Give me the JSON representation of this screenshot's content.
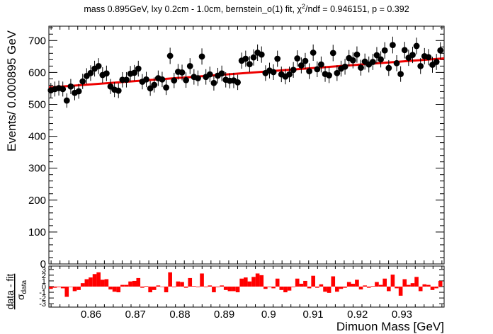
{
  "title": {
    "pre": "mass 0.895GeV, lxy 0.2cm - 1.0cm, bernstein_o(1) fit, χ",
    "sup": "2",
    "post": "/ndf = 0.946151, p = 0.392"
  },
  "chart_data": [
    {
      "type": "scatter",
      "panel": "main",
      "ylabel": "Events/ 0.000895 GeV",
      "xlim": [
        0.8505,
        0.9395
      ],
      "ylim": [
        0,
        745
      ],
      "xticks": [
        0.86,
        0.87,
        0.88,
        0.89,
        0.9,
        0.91,
        0.92,
        0.93
      ],
      "xtick_labels": [
        "0.86",
        "0.87",
        "0.88",
        "0.89",
        "0.9",
        "0.91",
        "0.92",
        "0.93"
      ],
      "yticks": [
        0,
        100,
        200,
        300,
        400,
        500,
        600,
        700
      ],
      "ytick_labels": [
        "0",
        "100",
        "200",
        "300",
        "400",
        "500",
        "600",
        "700"
      ],
      "grid": false,
      "colors": {
        "data": "#000000",
        "fit": "#ee0000"
      },
      "series": [
        {
          "kind": "data_points",
          "x": [
            0.85095,
            0.85185,
            0.85274,
            0.85364,
            0.85453,
            0.85543,
            0.85632,
            0.85722,
            0.85811,
            0.85901,
            0.8599,
            0.8608,
            0.86169,
            0.86259,
            0.86348,
            0.86438,
            0.86527,
            0.86617,
            0.86706,
            0.86796,
            0.86885,
            0.86975,
            0.87064,
            0.87154,
            0.87243,
            0.87333,
            0.87422,
            0.87512,
            0.87601,
            0.87691,
            0.8778,
            0.8787,
            0.87959,
            0.88049,
            0.88138,
            0.88228,
            0.88317,
            0.88407,
            0.88496,
            0.88586,
            0.88675,
            0.88765,
            0.88854,
            0.88944,
            0.89033,
            0.89123,
            0.89212,
            0.89302,
            0.89391,
            0.89481,
            0.8957,
            0.8966,
            0.89749,
            0.89839,
            0.89928,
            0.90018,
            0.90107,
            0.90197,
            0.90286,
            0.90376,
            0.90465,
            0.90555,
            0.90644,
            0.90734,
            0.90823,
            0.90913,
            0.91002,
            0.91092,
            0.91181,
            0.91271,
            0.9136,
            0.9145,
            0.91539,
            0.91629,
            0.91718,
            0.91808,
            0.91897,
            0.91987,
            0.92076,
            0.92166,
            0.92255,
            0.92345,
            0.92434,
            0.92524,
            0.92613,
            0.92703,
            0.92792,
            0.92882,
            0.92971,
            0.93061,
            0.9315,
            0.9324,
            0.93329,
            0.93419,
            0.93508,
            0.93598,
            0.93687,
            0.93777,
            0.93866
          ],
          "y": [
            544,
            548,
            551,
            548,
            512,
            556,
            536,
            541,
            572,
            589,
            598,
            612,
            620,
            592,
            597,
            556,
            546,
            543,
            577,
            577,
            596,
            599,
            612,
            571,
            578,
            550,
            561,
            582,
            578,
            553,
            652,
            575,
            602,
            600,
            576,
            620,
            586,
            582,
            650,
            586,
            594,
            567,
            590,
            597,
            577,
            574,
            575,
            569,
            637,
            643,
            626,
            647,
            662,
            656,
            598,
            606,
            601,
            643,
            594,
            587,
            594,
            608,
            644,
            622,
            636,
            604,
            662,
            610,
            625,
            595,
            591,
            661,
            598,
            612,
            618,
            645,
            638,
            656,
            615,
            634,
            625,
            633,
            654,
            641,
            669,
            614,
            686,
            629,
            595,
            670,
            646,
            655,
            683,
            620,
            651,
            648,
            624,
            633,
            669
          ]
        },
        {
          "kind": "fit",
          "x": [
            0.8505,
            0.9395
          ],
          "y": [
            553,
            644
          ]
        }
      ]
    },
    {
      "type": "bar",
      "panel": "pull",
      "ylabel": "data - fit",
      "ylabel_sub": "σ",
      "ylabel_sub2": "data",
      "xlabel": "Dimuon Mass [GeV]",
      "ylim": [
        -3.6,
        3.6
      ],
      "yticks": [
        -3,
        -2,
        -1,
        0,
        1,
        2,
        3
      ],
      "ytick_labels": [
        "-3",
        "-2",
        "-1",
        "0",
        "1",
        "2",
        "3"
      ],
      "colors": {
        "bars": "#ff0000"
      },
      "values": [
        -0.4,
        -0.2,
        -0.1,
        -0.3,
        -1.8,
        0.0,
        -0.8,
        -0.6,
        0.6,
        1.3,
        1.6,
        2.2,
        2.5,
        1.2,
        1.3,
        -0.5,
        -0.9,
        -1.0,
        0.3,
        0.3,
        0.9,
        1.0,
        1.5,
        -0.2,
        0.1,
        -1.0,
        -0.6,
        0.2,
        0.0,
        -1.0,
        2.5,
        -0.1,
        0.9,
        0.8,
        -0.2,
        1.5,
        0.1,
        -0.1,
        2.3,
        -0.1,
        0.2,
        -1.0,
        -0.1,
        0.2,
        -0.6,
        -0.8,
        -0.8,
        -1.0,
        1.4,
        1.6,
        0.9,
        1.7,
        2.3,
        2.0,
        -0.4,
        -0.1,
        -0.3,
        1.4,
        -0.6,
        -1.0,
        -0.7,
        -0.1,
        1.4,
        0.5,
        1.0,
        -0.3,
        1.9,
        -0.2,
        0.4,
        -0.9,
        -1.1,
        1.8,
        -0.9,
        -0.4,
        -0.2,
        0.8,
        0.5,
        1.2,
        -0.5,
        0.2,
        -0.2,
        0.1,
        0.8,
        0.3,
        1.4,
        -0.8,
        2.1,
        -0.3,
        -1.6,
        1.3,
        0.3,
        0.6,
        1.7,
        -0.8,
        0.4,
        0.3,
        -0.6,
        -0.3,
        1.0
      ]
    }
  ]
}
